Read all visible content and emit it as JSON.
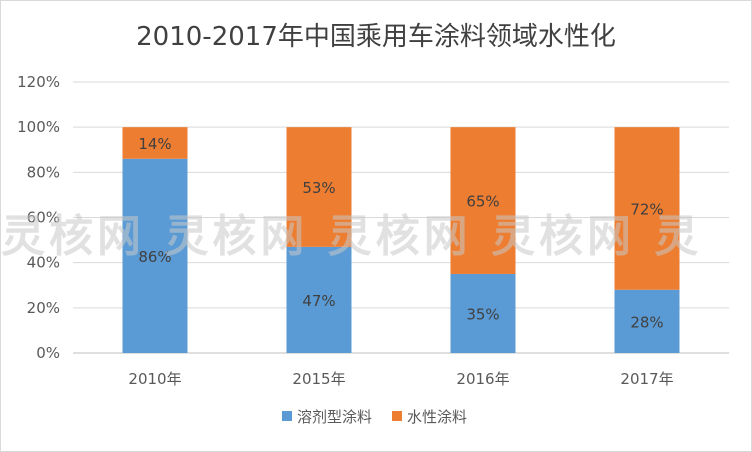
{
  "chart_data": {
    "type": "bar",
    "stacked": true,
    "percent": true,
    "title": "2010-2017年中国乘用车涂料领域水性化",
    "categories": [
      "2010年",
      "2015年",
      "2016年",
      "2017年"
    ],
    "series": [
      {
        "name": "溶剂型涂料",
        "values": [
          86,
          47,
          35,
          28
        ],
        "labels": [
          "86%",
          "47%",
          "35%",
          "28%"
        ],
        "color": "#5b9bd5"
      },
      {
        "name": "水性涂料",
        "values": [
          14,
          53,
          65,
          72
        ],
        "labels": [
          "14%",
          "53%",
          "65%",
          "72%"
        ],
        "color": "#ed7d31"
      }
    ],
    "yticks": [
      "0%",
      "20%",
      "40%",
      "60%",
      "80%",
      "100%",
      "120%"
    ],
    "ylim": [
      0,
      120
    ],
    "grid": true,
    "legend_position": "bottom"
  },
  "watermark": "灵核网 灵核网 灵核网 灵核网 灵"
}
